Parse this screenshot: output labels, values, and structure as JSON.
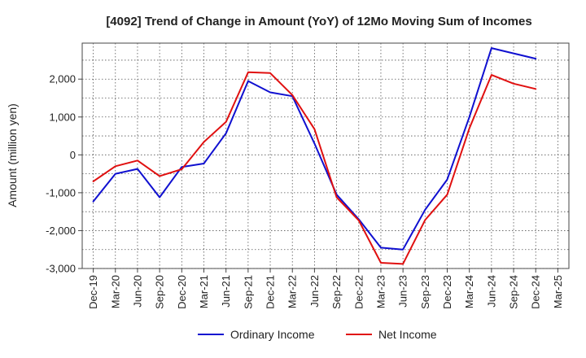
{
  "chart_data": {
    "type": "line",
    "title": "[4092]  Trend of Change in Amount (YoY) of 12Mo Moving Sum of Incomes",
    "xlabel": "",
    "ylabel": "Amount (million yen)",
    "categories": [
      "Dec-19",
      "Mar-20",
      "Jun-20",
      "Sep-20",
      "Dec-20",
      "Mar-21",
      "Jun-21",
      "Sep-21",
      "Dec-21",
      "Mar-22",
      "Jun-22",
      "Sep-22",
      "Dec-22",
      "Mar-23",
      "Jun-23",
      "Sep-23",
      "Dec-23",
      "Mar-24",
      "Jun-24",
      "Sep-24",
      "Dec-24",
      "Mar-25"
    ],
    "yticks": [
      -3000,
      -2000,
      -1000,
      0,
      1000,
      2000
    ],
    "ytick_labels": [
      "-3,000",
      "-2,000",
      "-1,000",
      "0",
      "1,000",
      "2,000"
    ],
    "ylim": [
      -3000,
      2950
    ],
    "grid": true,
    "legend_position": "bottom-center",
    "series": [
      {
        "name": "Ordinary Income",
        "color": "#1010d0",
        "values": [
          -1230,
          -500,
          -370,
          -1120,
          -320,
          -230,
          570,
          1950,
          1650,
          1550,
          300,
          -1050,
          -1700,
          -2450,
          -2500,
          -1450,
          -650,
          1000,
          2820,
          2680,
          2540,
          null
        ]
      },
      {
        "name": "Net Income",
        "color": "#e01010",
        "values": [
          -700,
          -300,
          -150,
          -560,
          -380,
          340,
          870,
          2180,
          2160,
          1580,
          680,
          -1120,
          -1730,
          -2850,
          -2880,
          -1720,
          -1050,
          700,
          2110,
          1880,
          1740,
          null
        ]
      }
    ]
  }
}
